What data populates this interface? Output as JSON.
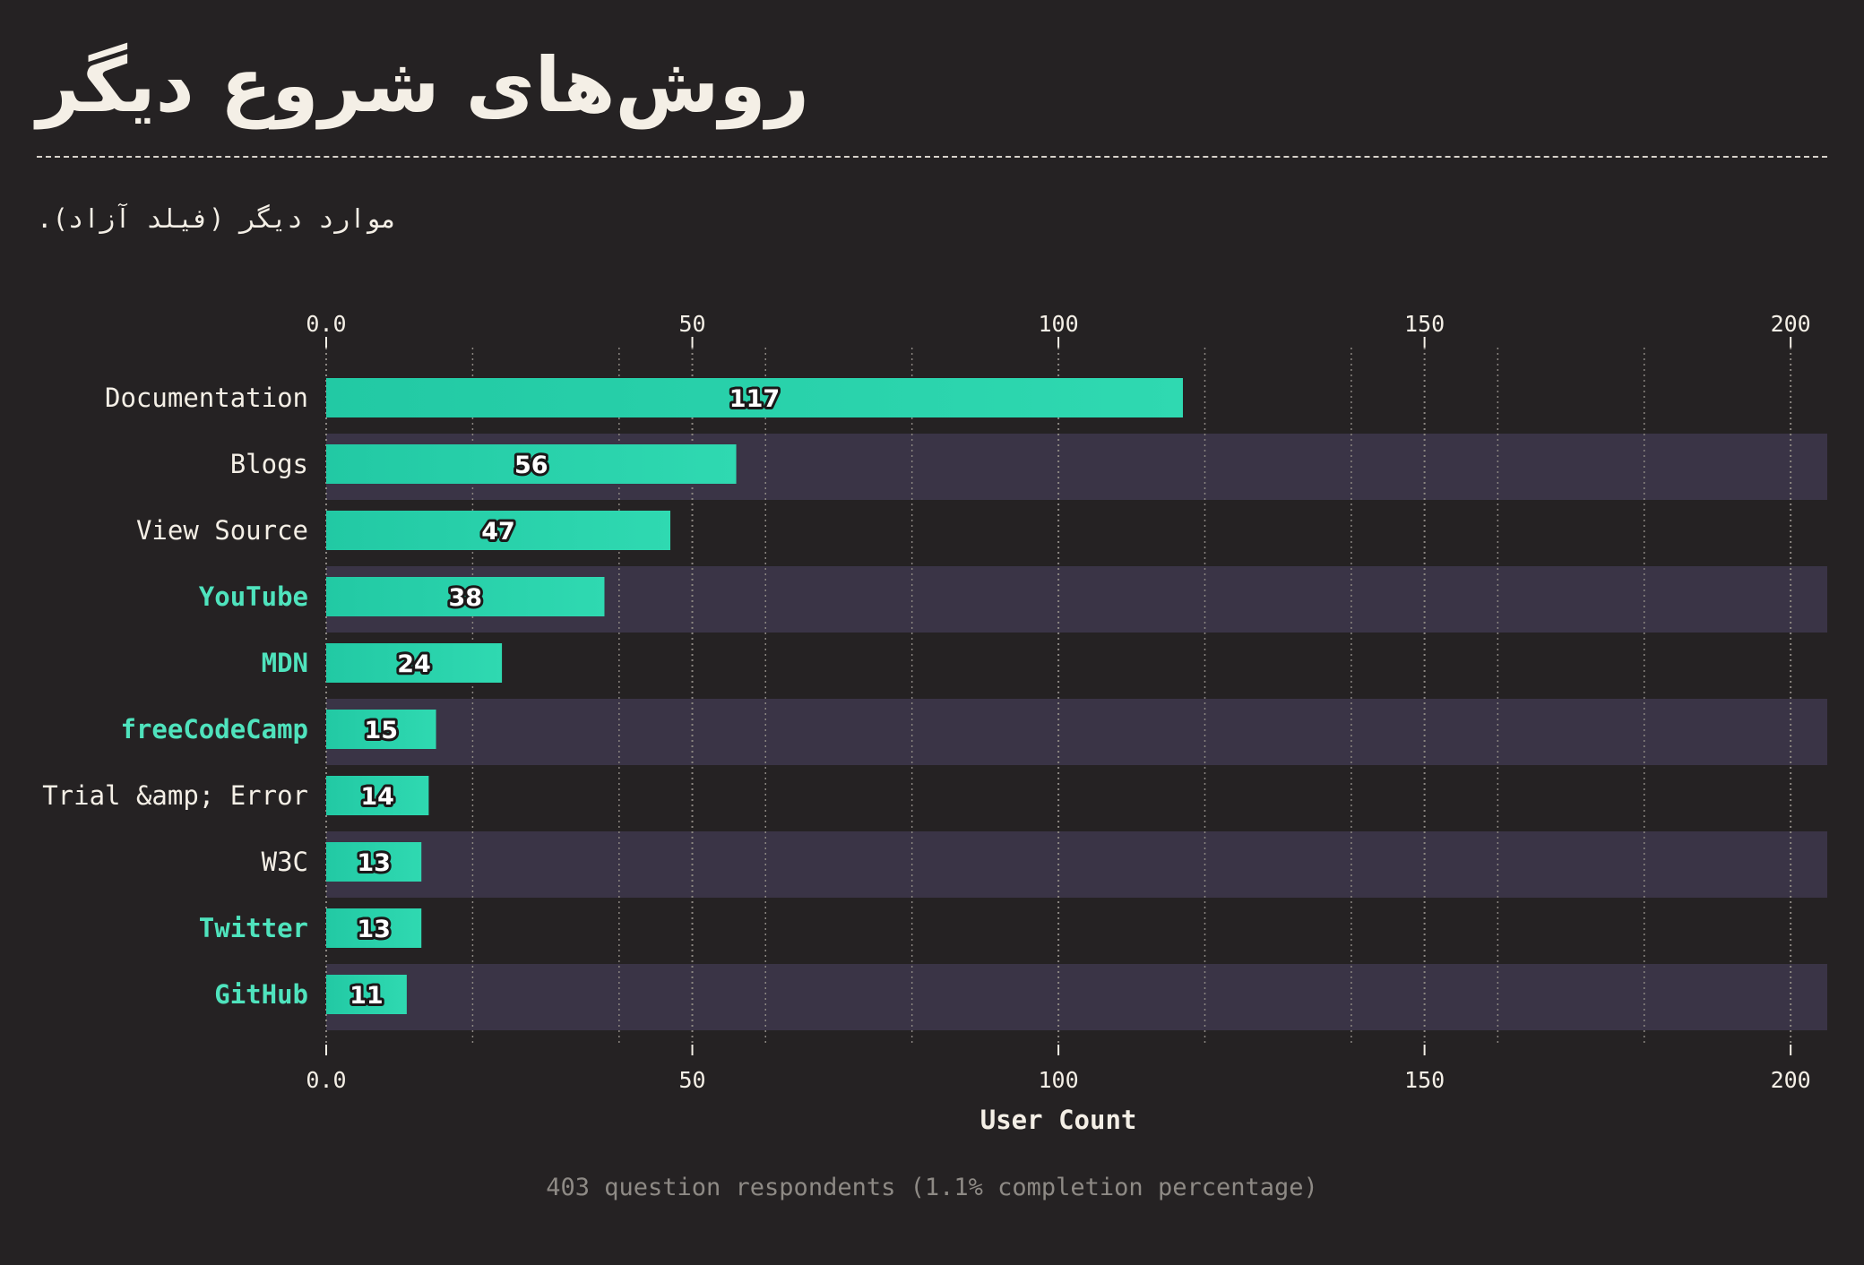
{
  "title": "روش‌های شروع دیگر",
  "subtitle": "موارد دیگر (فیلد آزاد).",
  "footer": "403 question respondents (1.1% completion percentage)",
  "colors": {
    "background": "#252223",
    "bar": "#2fd9b1",
    "bar_dark": "#22c9a4",
    "band": "#3a3446",
    "text": "#f4efe6",
    "highlight_label": "#4fe3bd",
    "grid": "#8a8580",
    "muted": "#8e8a85"
  },
  "chart_data": {
    "type": "bar",
    "orientation": "horizontal",
    "categories": [
      "Documentation",
      "Blogs",
      "View Source",
      "YouTube",
      "MDN",
      "freeCodeCamp",
      "Trial &amp; Error",
      "W3C",
      "Twitter",
      "GitHub"
    ],
    "values": [
      117,
      56,
      47,
      38,
      24,
      15,
      14,
      13,
      13,
      11
    ],
    "highlighted": [
      false,
      false,
      false,
      true,
      true,
      true,
      false,
      false,
      true,
      true
    ],
    "xlabel": "User Count",
    "xlim": [
      0,
      205
    ],
    "xticks": [
      0,
      50,
      100,
      150,
      200
    ],
    "xtick_labels": [
      "0.0",
      "50",
      "100",
      "150",
      "200"
    ],
    "minor_grid": [
      20,
      40,
      60,
      80,
      120,
      140,
      160,
      180
    ],
    "grid": true,
    "axis_position": "top-and-bottom"
  }
}
